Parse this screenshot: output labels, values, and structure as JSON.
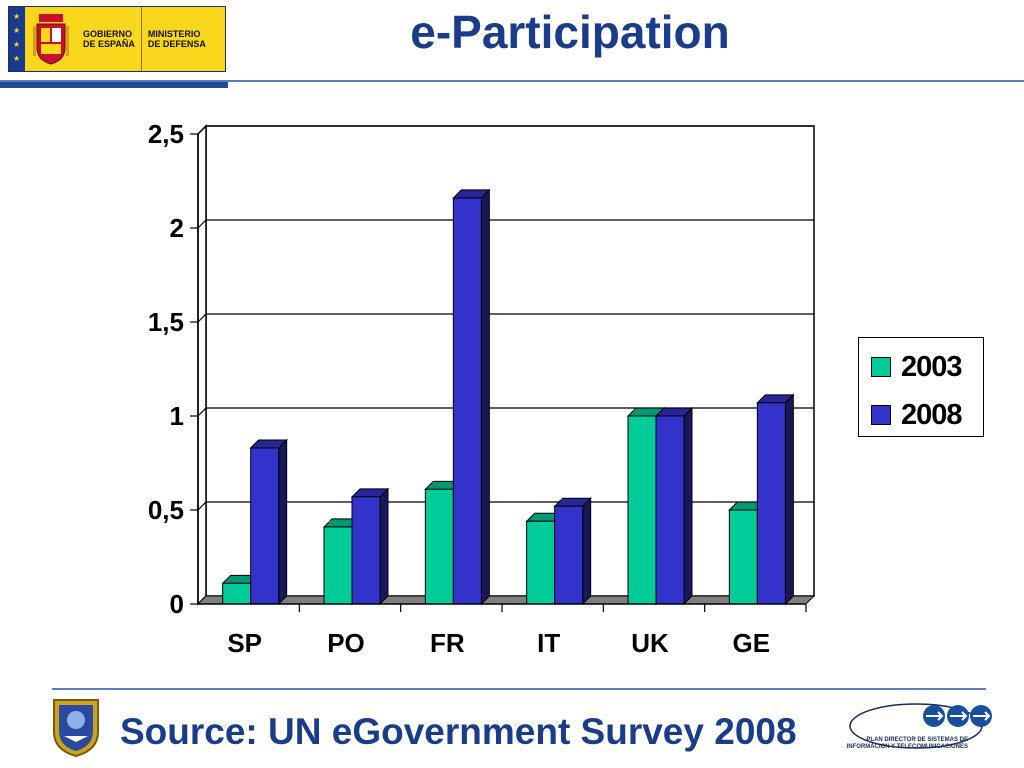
{
  "header": {
    "title": "e-Participation",
    "logo": {
      "line1a": "GOBIERNO",
      "line1b": "DE ESPAÑA",
      "line2a": "MINISTERIO",
      "line2b": "DE DEFENSA"
    }
  },
  "colors": {
    "series_2003": "#00cc99",
    "series_2008": "#3333cc",
    "accent": "#1a3c8a"
  },
  "chart_data": {
    "type": "bar",
    "categories": [
      "SP",
      "PO",
      "FR",
      "IT",
      "UK",
      "GE"
    ],
    "series": [
      {
        "name": "2003",
        "values": [
          0.11,
          0.41,
          0.61,
          0.44,
          1.0,
          0.5
        ]
      },
      {
        "name": "2008",
        "values": [
          0.83,
          0.57,
          2.16,
          0.52,
          1.0,
          1.07
        ]
      }
    ],
    "y_ticks": [
      "0",
      "0,5",
      "1",
      "1,5",
      "2",
      "2,5"
    ],
    "ylim": [
      0,
      2.5
    ],
    "grid": true,
    "legend": "right",
    "three_d": true
  },
  "footer": {
    "source": "Source: UN eGovernment Survey 2008",
    "logo_text": "PLAN DIRECTOR DE SISTEMAS DE INFORMACION Y TELECOMUNICACIONES"
  }
}
